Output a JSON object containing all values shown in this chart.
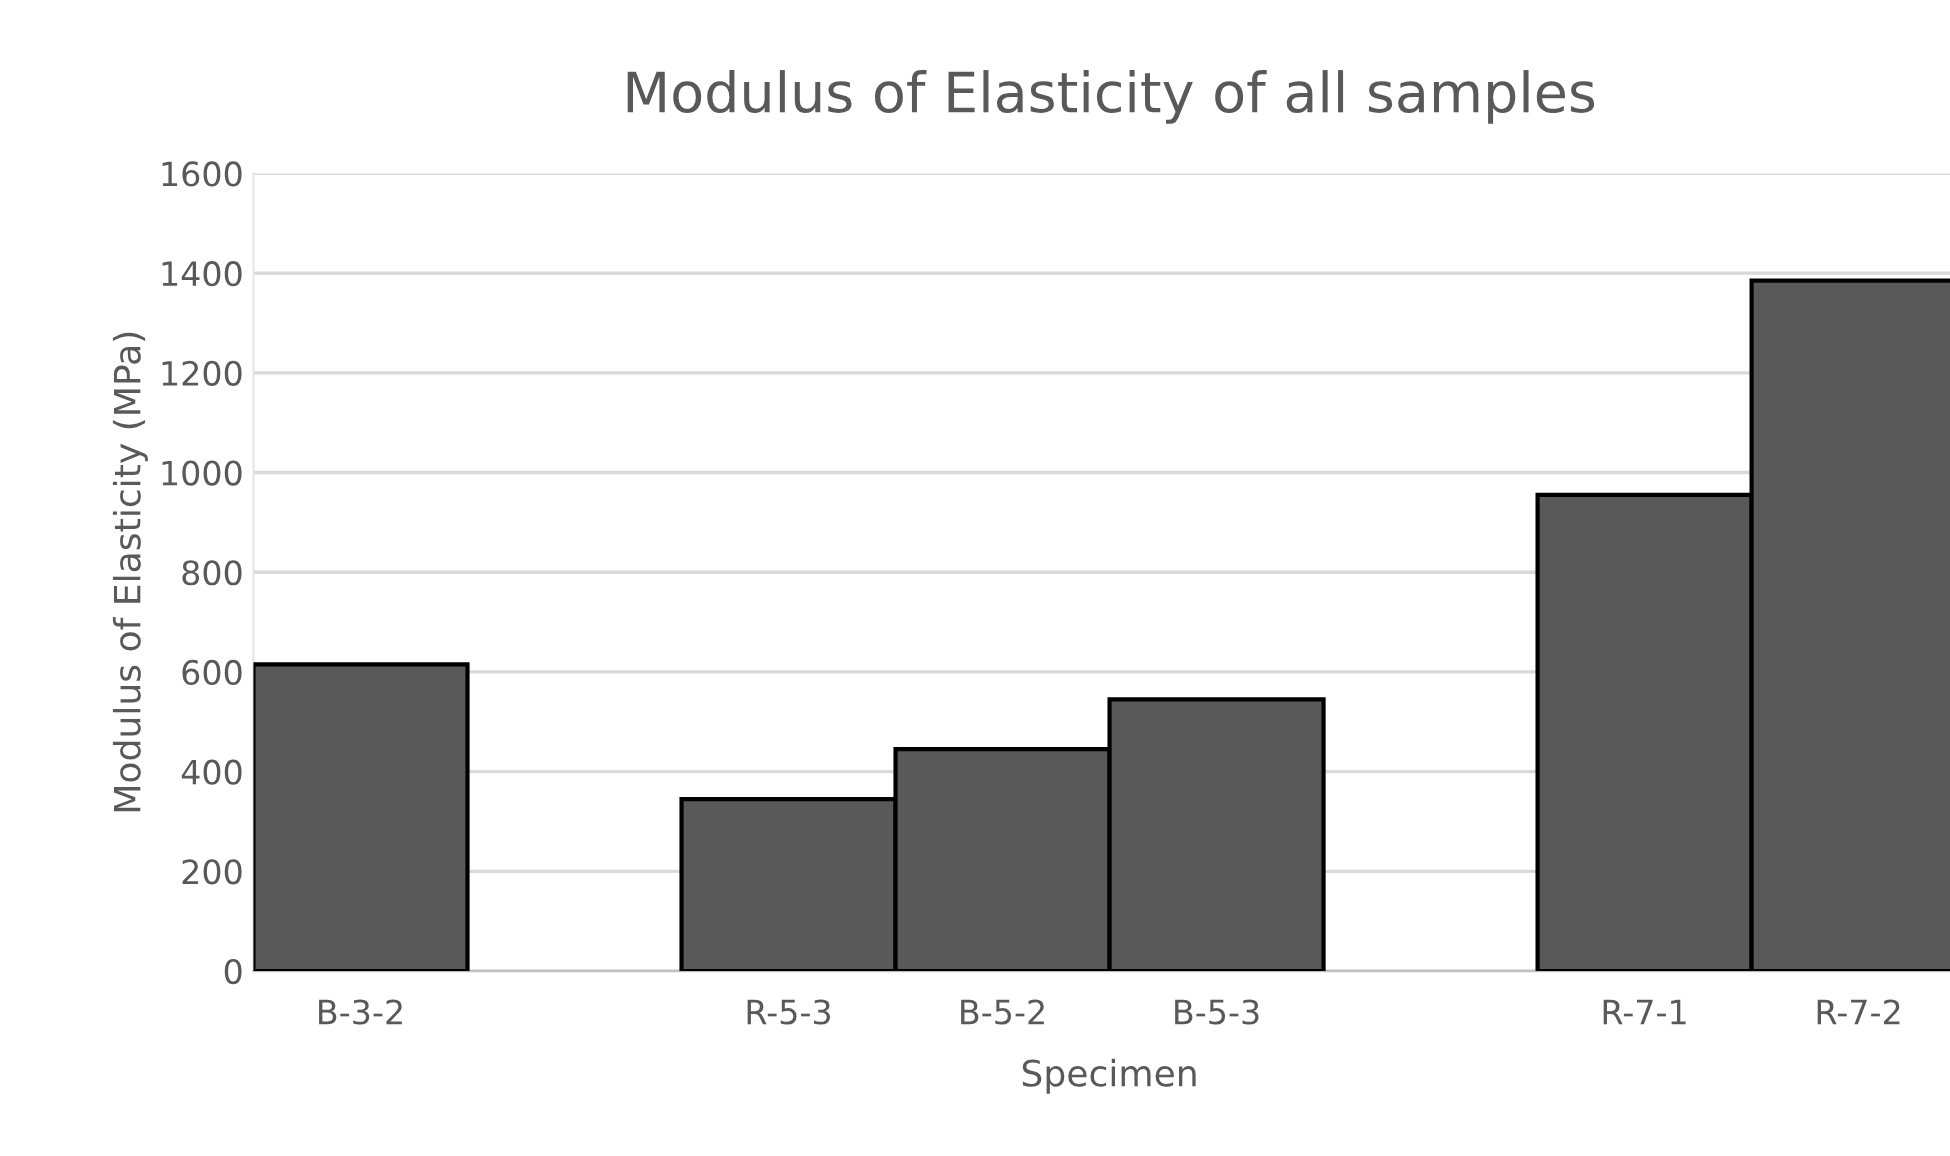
{
  "chart_data": {
    "type": "bar",
    "title": "Modulus of Elasticity of all samples",
    "xlabel": "Specimen",
    "ylabel": "Modulus of Elasticity (MPa)",
    "categories": [
      "B-3-2",
      null,
      "R-5-3",
      "B-5-2",
      "B-5-3",
      null,
      "R-7-1",
      "R-7-2"
    ],
    "values": [
      615,
      null,
      345,
      445,
      545,
      null,
      955,
      1385
    ],
    "color": "#595959",
    "ylim": [
      0,
      1600
    ],
    "yticks": [
      0,
      200,
      400,
      600,
      800,
      1000,
      1200,
      1400,
      1600
    ],
    "grid": "y",
    "legend": false
  }
}
